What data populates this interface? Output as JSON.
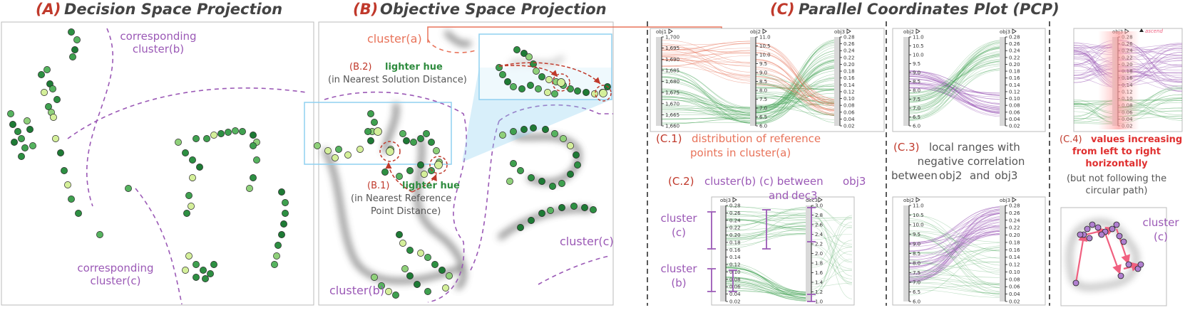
{
  "panels": {
    "a": {
      "letter": "(A)",
      "title": "Decision Space Projection",
      "labels": {
        "cluster_b": [
          "corresponding",
          "cluster(b)"
        ],
        "cluster_c": [
          "corresponding",
          "cluster(c)"
        ]
      }
    },
    "b": {
      "letter": "(B)",
      "title": "Objective Space Projection",
      "cluster_a": "cluster(a)",
      "cluster_b": "cluster(b)",
      "cluster_c": "cluster(c)",
      "b2": {
        "tag": "(B.2)",
        "hue": "lighter hue",
        "note": "(in Nearest Solution Distance)"
      },
      "b1": {
        "tag": "(B.1)",
        "hue": "lighter hue",
        "note1": "(in Nearest Reference",
        "note2": "Point Distance)"
      }
    },
    "c": {
      "letter": "(C)",
      "title": "Parallel Coordinates Plot (PCP)",
      "c1": {
        "tag": "(C.1)",
        "line1": "distribution of reference",
        "line2": "points in cluster(a)"
      },
      "c2": {
        "tag": "(C.2)",
        "text": "cluster(b) (c) between",
        "code1": "obj3",
        "and": "and",
        "code2": "dec3",
        "cluster_c": [
          "cluster",
          "(c)"
        ],
        "cluster_b": [
          "cluster",
          "(b)"
        ]
      },
      "c3": {
        "tag": "(C.3)",
        "line1": "local ranges with",
        "line2": "negative correlation",
        "between": "between",
        "code1": "obj2",
        "and": "and",
        "code2": "obj3"
      },
      "c4": {
        "tag": "(C.4)",
        "line1": "values increasing",
        "line2": "from left to right",
        "line3": "horizontally",
        "note1": "(but not following the",
        "note2": "circular path)",
        "sort_label": "ascend",
        "cluster": [
          "cluster",
          "(c)"
        ]
      }
    }
  },
  "pcp": {
    "c1": {
      "axes": [
        {
          "name": "obj1",
          "ticks": [
            "1,700",
            "1,695",
            "1,690",
            "1,685",
            "1,680",
            "1,675",
            "1,670",
            "1,665",
            "1,660"
          ]
        },
        {
          "name": "obj2",
          "ticks": [
            "11.0",
            "10.5",
            "10.0",
            "9.5",
            "9.0",
            "8.5",
            "8.0",
            "7.5",
            "7.0",
            "6.5",
            "6.0"
          ]
        },
        {
          "name": "obj3",
          "ticks": [
            "0.28",
            "0.26",
            "0.24",
            "0.22",
            "0.20",
            "0.18",
            "0.16",
            "0.14",
            "0.12",
            "0.10",
            "0.08",
            "0.06",
            "0.04",
            "0.02"
          ]
        }
      ]
    },
    "c2": {
      "axes": [
        {
          "name": "obj3",
          "ticks": [
            "0.28",
            "0.26",
            "0.24",
            "0.22",
            "0.20",
            "0.18",
            "0.16",
            "0.14",
            "0.12",
            "0.10",
            "0.08",
            "0.06",
            "0.04",
            "0.02"
          ]
        },
        {
          "name": "dec3",
          "ticks": [
            "3.0",
            "2.8",
            "2.6",
            "2.4",
            "2.2",
            "2.0",
            "1.8",
            "1.6",
            "1.4",
            "1.2",
            "1.0"
          ]
        }
      ]
    },
    "c3top": {
      "axes": [
        {
          "name": "obj2",
          "ticks": [
            "11.0",
            "10.5",
            "10.0",
            "9.5",
            "9.0",
            "8.5",
            "8.0",
            "7.5",
            "7.0",
            "6.5",
            "6.0"
          ]
        },
        {
          "name": "obj3",
          "ticks": [
            "0.28",
            "0.26",
            "0.24",
            "0.22",
            "0.20",
            "0.18",
            "0.16",
            "0.14",
            "0.12",
            "0.10",
            "0.08",
            "0.06",
            "0.04",
            "0.02"
          ]
        }
      ]
    },
    "c3bot": {
      "axes": [
        {
          "name": "obj2",
          "ticks": [
            "11.0",
            "10.5",
            "10.0",
            "9.5",
            "9.0",
            "8.5",
            "8.0",
            "7.5",
            "7.0",
            "6.5",
            "6.0"
          ]
        },
        {
          "name": "obj3",
          "ticks": [
            "0.28",
            "0.26",
            "0.24",
            "0.22",
            "0.20",
            "0.18",
            "0.16",
            "0.14",
            "0.12",
            "0.10",
            "0.08",
            "0.06",
            "0.04",
            "0.02"
          ]
        }
      ]
    },
    "c4": {
      "axes": [
        {
          "name": "obj3",
          "ticks": [
            "0.28",
            "0.26",
            "0.24",
            "0.22",
            "0.20",
            "0.18",
            "0.16",
            "0.14",
            "0.12",
            "0.10",
            "0.08",
            "0.06",
            "0.04",
            "0.02"
          ]
        }
      ]
    }
  },
  "colors": {
    "green_dark": "#1e7a35",
    "green_mid": "#3fa04f",
    "green_light": "#d4ef9a",
    "purple": "#9b59b6",
    "salmon": "#e8735a",
    "red": "#c0392b",
    "sky": "#8fd0f0"
  }
}
